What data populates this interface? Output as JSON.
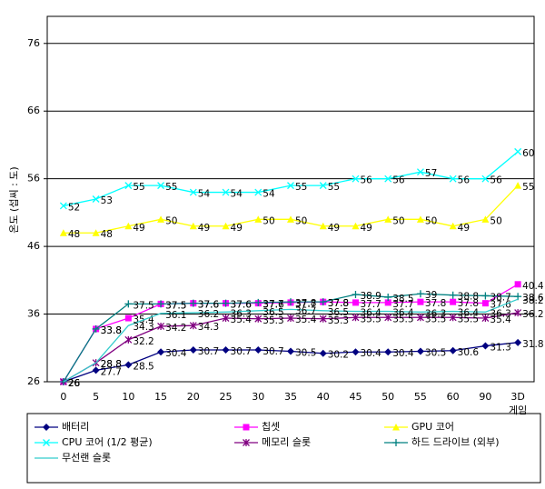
{
  "chart_data": {
    "type": "line",
    "y_label": "온도 (섭씨 : 도)",
    "categories": [
      "0",
      "5",
      "10",
      "15",
      "20",
      "25",
      "30",
      "35",
      "40",
      "45",
      "50",
      "55",
      "60",
      "90",
      "3D 게임"
    ],
    "ylim": [
      26,
      80
    ],
    "yticks": [
      26,
      36,
      46,
      56,
      66,
      76
    ],
    "grid": true,
    "series": [
      {
        "name": "배터리",
        "color": "#000080",
        "marker": "diamond",
        "values": [
          26,
          27.7,
          28.5,
          30.4,
          30.7,
          30.7,
          30.7,
          30.5,
          30.2,
          30.4,
          30.4,
          30.5,
          30.6,
          31.3,
          31.8
        ]
      },
      {
        "name": "칩셋",
        "color": "#ff00ff",
        "marker": "square",
        "values": [
          26,
          33.8,
          35.4,
          37.5,
          37.6,
          37.6,
          37.6,
          37.7,
          37.8,
          37.7,
          37.7,
          37.8,
          37.8,
          37.6,
          40.4
        ]
      },
      {
        "name": "GPU 코어",
        "color": "#ffff00",
        "marker": "triangle",
        "values": [
          48,
          48,
          49,
          50,
          49,
          49,
          50,
          50,
          49,
          49,
          50,
          50,
          49,
          50,
          55
        ]
      },
      {
        "name": "CPU 코어 (1/2 평균)",
        "color": "#00ffff",
        "marker": "x",
        "values": [
          52,
          53,
          55,
          55,
          54,
          54,
          54,
          55,
          55,
          56,
          56,
          57,
          56,
          56,
          60
        ]
      },
      {
        "name": "메모리 슬롯",
        "color": "#800080",
        "marker": "asterisk",
        "values": [
          26,
          28.8,
          32.2,
          34.2,
          34.3,
          35.4,
          35.3,
          35.4,
          35.3,
          35.5,
          35.5,
          35.5,
          35.5,
          35.4,
          36.2
        ]
      },
      {
        "name": "하드 드라이브 (외부)",
        "color": "#008080",
        "marker": "plus",
        "values": [
          26,
          33.8,
          37.5,
          37.5,
          37.6,
          37.6,
          37.7,
          37.8,
          37.8,
          38.9,
          38.5,
          39.0,
          38.8,
          38.7,
          38.6
        ]
      },
      {
        "name": "무선랜 슬롯",
        "color": "#33cccc",
        "values": [
          26,
          28.8,
          34.3,
          36.1,
          36.2,
          36.3,
          36.5,
          36.7,
          36.5,
          36.4,
          36.4,
          36.3,
          36.4,
          36.3,
          38.2
        ]
      }
    ]
  }
}
